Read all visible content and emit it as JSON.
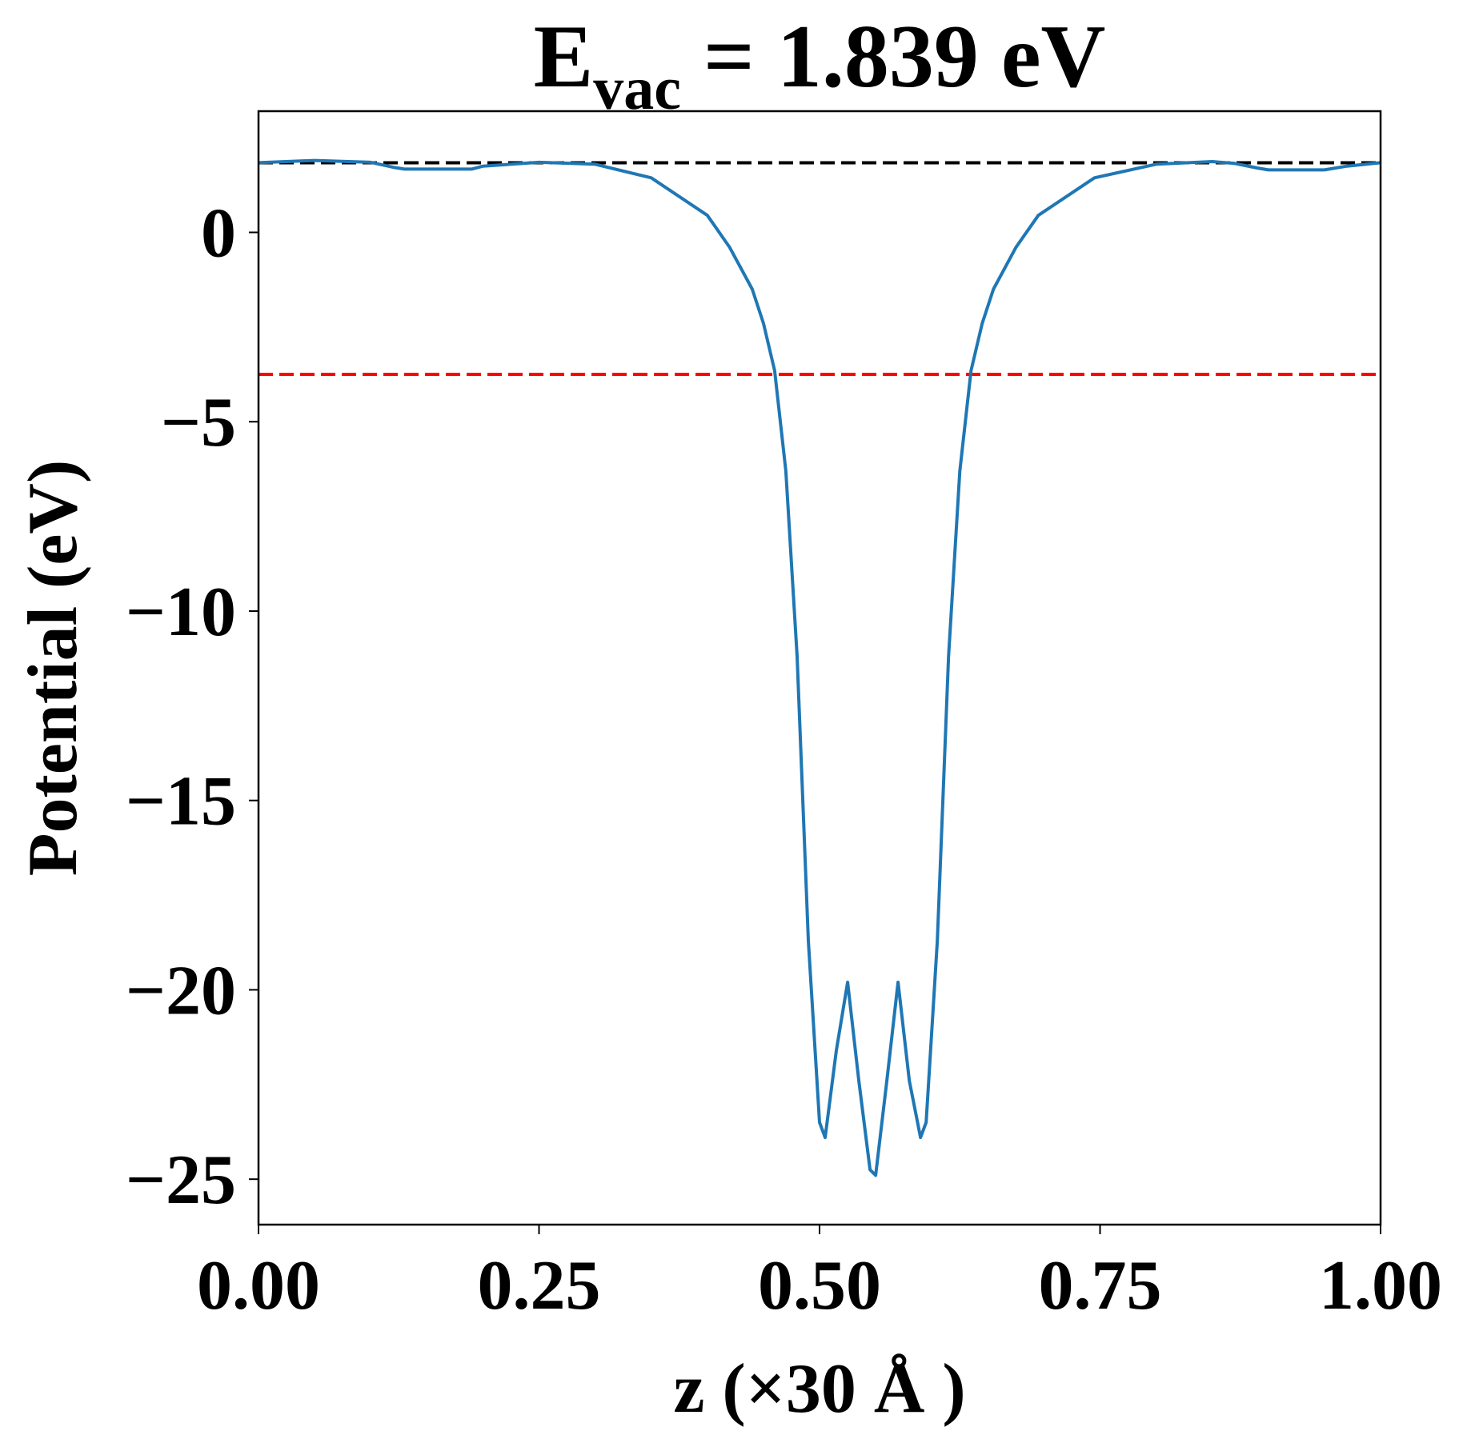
{
  "chart_data": {
    "type": "line",
    "title": {
      "main": "E",
      "subscript": "vac",
      "rest": " = 1.839 eV"
    },
    "x_label": "z (×30 Å )",
    "y_label": "Potential (eV)",
    "x": [
      0,
      0.05,
      0.1,
      0.12,
      0.13,
      0.19,
      0.2,
      0.25,
      0.3,
      0.35,
      0.4,
      0.42,
      0.44,
      0.45,
      0.46,
      0.47,
      0.48,
      0.49,
      0.5,
      0.505,
      0.515,
      0.525,
      0.535,
      0.545,
      0.55,
      0.56,
      0.57,
      0.58,
      0.59,
      0.595,
      0.605,
      0.615,
      0.625,
      0.635,
      0.645,
      0.655,
      0.675,
      0.695,
      0.745,
      0.8,
      0.85,
      0.87,
      0.89,
      0.9,
      0.95,
      0.97,
      1.0
    ],
    "series": [
      {
        "color": "#1f77b4",
        "values": [
          1.84,
          1.9,
          1.85,
          1.72,
          1.67,
          1.67,
          1.75,
          1.85,
          1.8,
          1.44,
          0.45,
          -0.4,
          -1.5,
          -2.4,
          -3.65,
          -6.3,
          -11.2,
          -18.7,
          -23.5,
          -23.9,
          -21.6,
          -19.8,
          -22.4,
          -24.75,
          -24.9,
          -22.4,
          -19.8,
          -22.4,
          -23.9,
          -23.5,
          -18.7,
          -11.2,
          -6.3,
          -3.65,
          -2.4,
          -1.5,
          -0.4,
          0.45,
          1.44,
          1.8,
          1.87,
          1.82,
          1.7,
          1.65,
          1.65,
          1.75,
          1.84
        ]
      }
    ],
    "hlines": [
      {
        "y": 1.839,
        "color": "#000000"
      },
      {
        "y": -3.75,
        "color": "#ff0000"
      }
    ],
    "xlim": [
      0,
      1
    ],
    "ylim": [
      -26.2,
      3.2
    ],
    "xticks": [
      {
        "value": 0,
        "label": "0.00"
      },
      {
        "value": 0.25,
        "label": "0.25"
      },
      {
        "value": 0.5,
        "label": "0.50"
      },
      {
        "value": 0.75,
        "label": "0.75"
      },
      {
        "value": 1,
        "label": "1.00"
      }
    ],
    "yticks": [
      0,
      {
        "value": -5,
        "label": "−5"
      },
      {
        "value": -10,
        "label": "−10"
      },
      {
        "value": -15,
        "label": "−15"
      },
      {
        "value": -20,
        "label": "−20"
      },
      {
        "value": -25,
        "label": "−25"
      }
    ]
  }
}
